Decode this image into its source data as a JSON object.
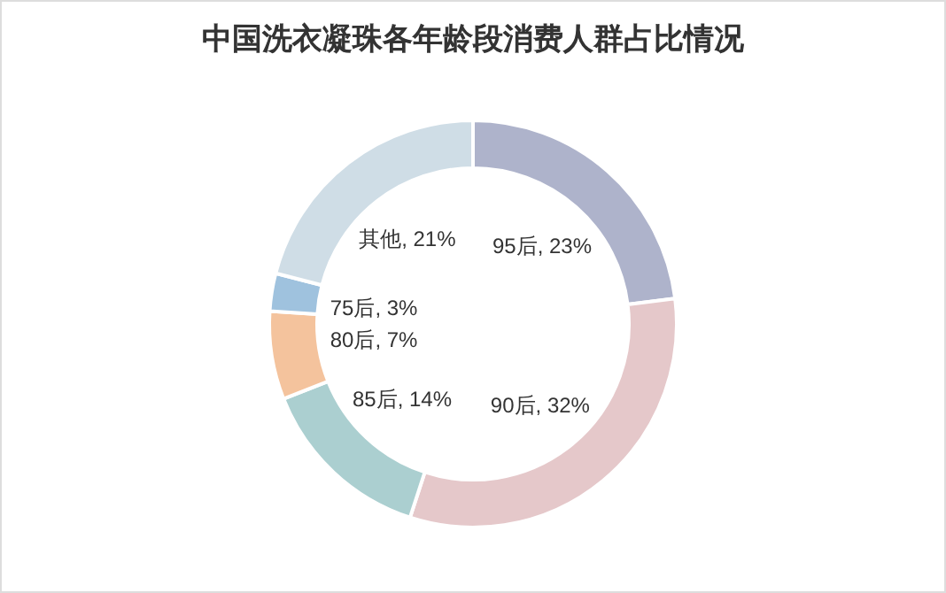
{
  "chart_data": {
    "type": "donut",
    "title": "中国洗衣凝珠各年龄段消费人群占比情况",
    "categories": [
      "95后",
      "90后",
      "85后",
      "80后",
      "75后",
      "其他"
    ],
    "values": [
      23,
      32,
      14,
      7,
      3,
      21
    ],
    "colors": [
      "#aeb3cb",
      "#e5c8ca",
      "#abcfd0",
      "#f4c39d",
      "#9fc2de",
      "#cfdde6"
    ],
    "value_labels": [
      "23%",
      "32%",
      "14%",
      "7%",
      "3%",
      "21%"
    ],
    "legend": false
  }
}
